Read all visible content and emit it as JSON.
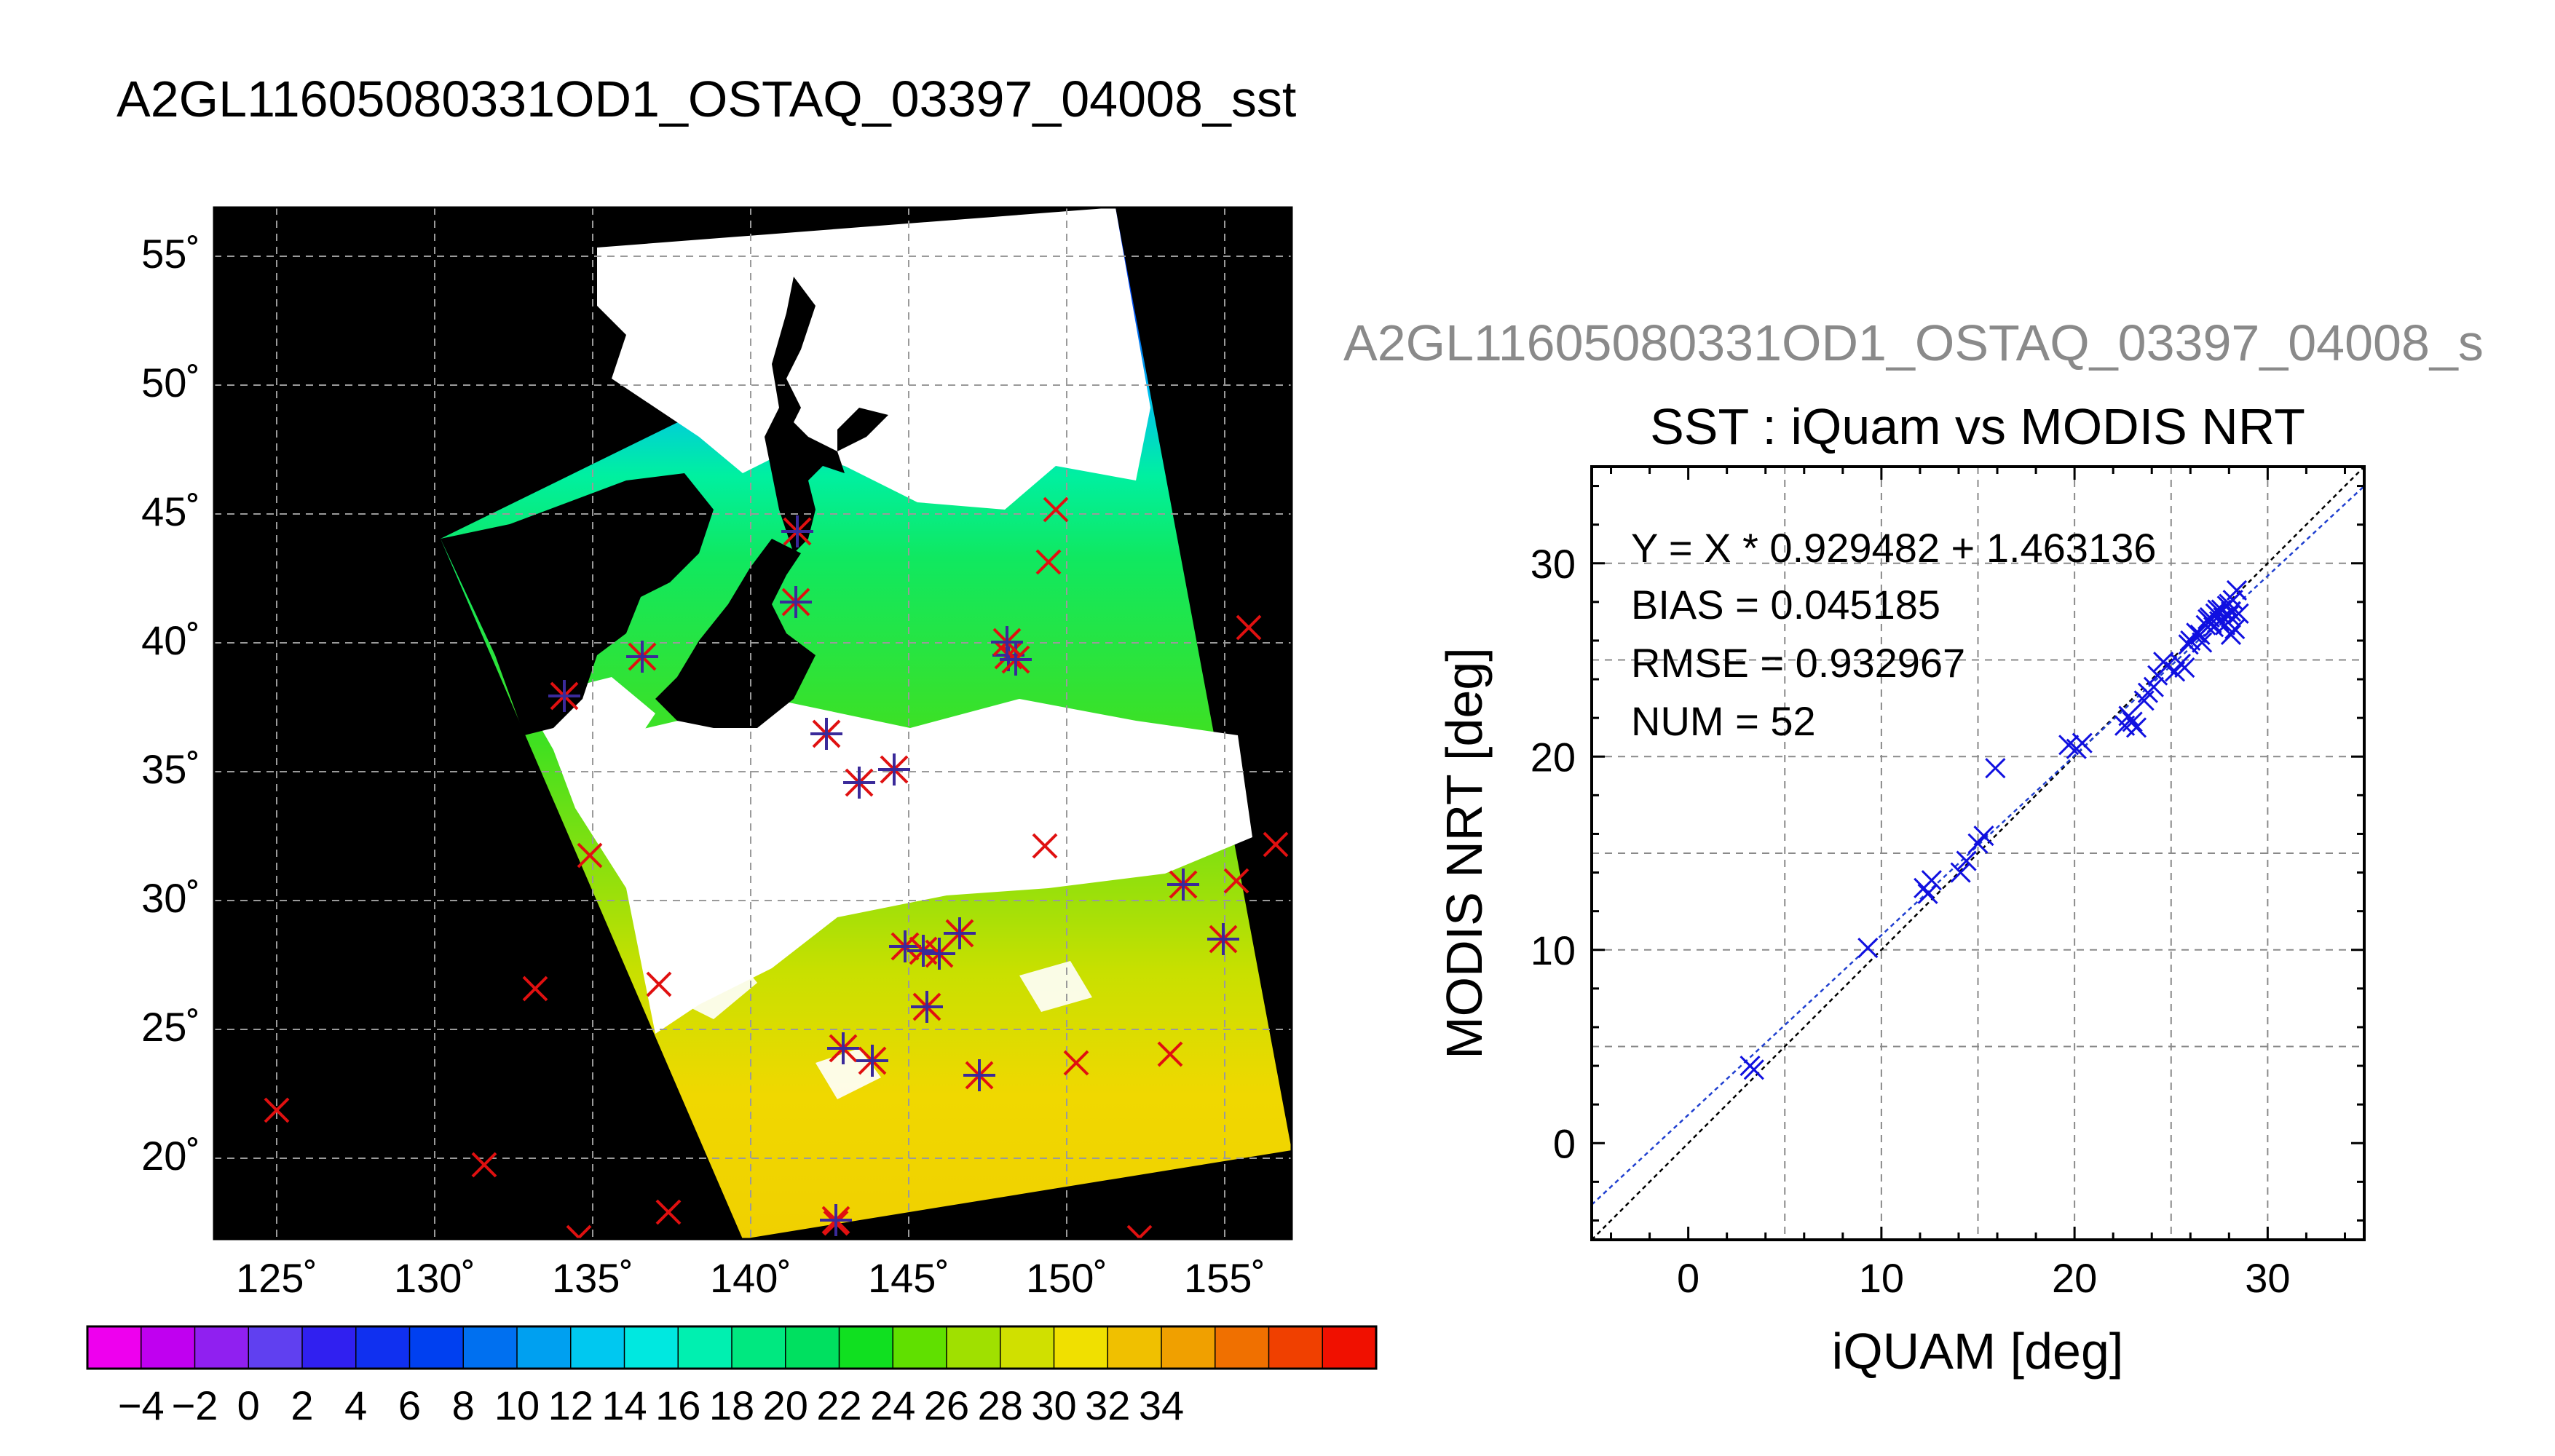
{
  "page": {
    "main_title": "A2GL11605080331OD1_OSTAQ_03397_04008_sst",
    "scatter_header": "A2GL11605080331OD1_OSTAQ_03397_04008_s"
  },
  "map": {
    "lat_ticks": [
      "55˚",
      "50˚",
      "45˚",
      "40˚",
      "35˚",
      "30˚",
      "25˚",
      "20˚"
    ],
    "lon_ticks": [
      "125˚",
      "130˚",
      "135˚",
      "140˚",
      "145˚",
      "150˚",
      "155˚"
    ]
  },
  "colorbar": {
    "ticks": [
      "−4",
      "−2",
      "0",
      "2",
      "4",
      "6",
      "8",
      "10",
      "12",
      "14",
      "16",
      "18",
      "20",
      "22",
      "24",
      "26",
      "28",
      "30",
      "32",
      "34"
    ],
    "colors": [
      "#ee00ee",
      "#c000f0",
      "#9020f0",
      "#6040f0",
      "#3020f0",
      "#1030f0",
      "#0040f0",
      "#0070f0",
      "#00a0f0",
      "#00c8f0",
      "#00e8e0",
      "#00f0b0",
      "#00e880",
      "#00e060",
      "#10e020",
      "#60e000",
      "#a0e000",
      "#d0e000",
      "#f0e000",
      "#f0c000",
      "#f0a000",
      "#f07000",
      "#f04000",
      "#f01000"
    ]
  },
  "chart_data": {
    "type": "scatter",
    "title": "SST : iQuam vs MODIS NRT",
    "xlabel": "iQUAM [deg]",
    "ylabel": "MODIS NRT [deg]",
    "xlim": [
      -5,
      35
    ],
    "ylim": [
      -5,
      35
    ],
    "xticks": [
      "0",
      "10",
      "20",
      "30"
    ],
    "yticks": [
      "0",
      "10",
      "20",
      "30"
    ],
    "grid": true,
    "annotations": [
      "Y = X * 0.929482 + 1.463136",
      "BIAS = 0.045185",
      "RMSE = 0.932967",
      "NUM = 52"
    ],
    "regression": {
      "slope": 0.929482,
      "intercept": 1.463136
    },
    "colors": {
      "points": "#1010e0",
      "fit_line": "#2040d0",
      "identity_line": "#000000"
    },
    "points": [
      [
        3.2,
        4.0
      ],
      [
        3.4,
        3.8
      ],
      [
        9.3,
        10.1
      ],
      [
        12.2,
        13.2
      ],
      [
        12.4,
        12.9
      ],
      [
        12.6,
        13.6
      ],
      [
        14.1,
        14.0
      ],
      [
        14.4,
        14.6
      ],
      [
        15.0,
        15.5
      ],
      [
        15.3,
        15.9
      ],
      [
        15.9,
        19.4
      ],
      [
        19.7,
        20.6
      ],
      [
        20.1,
        20.4
      ],
      [
        20.4,
        20.7
      ],
      [
        22.6,
        21.6
      ],
      [
        23.0,
        21.8
      ],
      [
        23.2,
        21.5
      ],
      [
        23.6,
        22.9
      ],
      [
        23.8,
        23.3
      ],
      [
        24.1,
        23.6
      ],
      [
        24.3,
        24.2
      ],
      [
        24.8,
        24.7
      ],
      [
        25.2,
        24.4
      ],
      [
        25.5,
        24.8
      ],
      [
        25.7,
        24.6
      ],
      [
        26.0,
        26.0
      ],
      [
        26.3,
        26.4
      ],
      [
        26.6,
        25.9
      ],
      [
        26.8,
        26.8
      ],
      [
        27.0,
        27.2
      ],
      [
        27.1,
        26.9
      ],
      [
        27.3,
        27.4
      ],
      [
        27.5,
        27.0
      ],
      [
        27.6,
        27.6
      ],
      [
        27.7,
        27.2
      ],
      [
        27.8,
        26.8
      ],
      [
        27.9,
        27.8
      ],
      [
        28.0,
        27.3
      ],
      [
        28.1,
        27.5
      ],
      [
        28.2,
        28.1
      ],
      [
        28.3,
        26.6
      ],
      [
        28.4,
        28.6
      ],
      [
        28.5,
        27.4
      ],
      [
        28.1,
        26.3
      ],
      [
        26.9,
        27.1
      ],
      [
        27.4,
        27.6
      ],
      [
        28.0,
        27.9
      ],
      [
        27.2,
        26.7
      ],
      [
        26.5,
        26.3
      ],
      [
        25.9,
        25.8
      ],
      [
        24.6,
        24.9
      ],
      [
        22.8,
        22.1
      ]
    ]
  }
}
